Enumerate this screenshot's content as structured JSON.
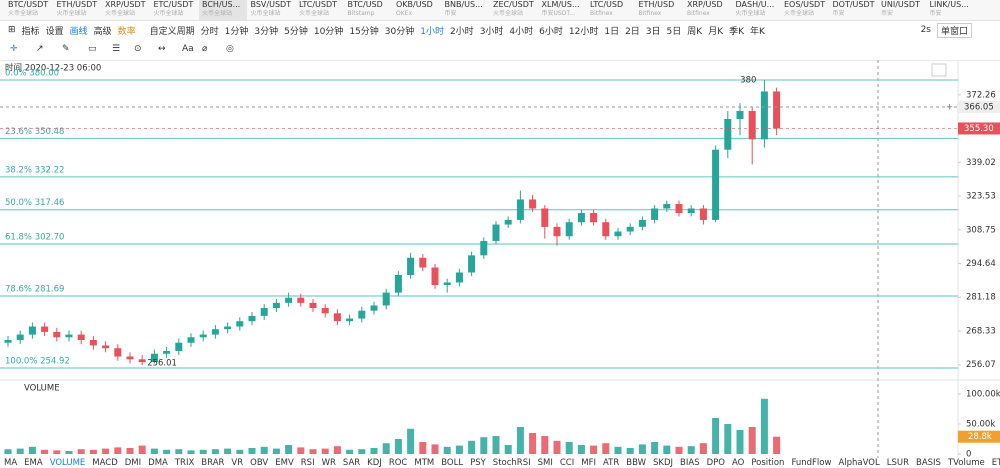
{
  "tabs": [
    {
      "symbol": "BTC/USDT",
      "exchange": "火币全球站"
    },
    {
      "symbol": "ETH/USDT",
      "exchange": "火币全球站"
    },
    {
      "symbol": "XRP/USDT",
      "exchange": "火币全球站"
    },
    {
      "symbol": "ETC/USDT",
      "exchange": "火币全球站"
    },
    {
      "symbol": "BCH/US...",
      "exchange": "火币全球站"
    },
    {
      "symbol": "BSV/USDT",
      "exchange": "火币全球站"
    },
    {
      "symbol": "LTC/USDT",
      "exchange": "火币全球站"
    },
    {
      "symbol": "BTC/USD",
      "exchange": "Bitstamp"
    },
    {
      "symbol": "OKB/USD",
      "exchange": "OKEx"
    },
    {
      "symbol": "BNB/US...",
      "exchange": "币安"
    },
    {
      "symbol": "ZEC/USDT",
      "exchange": "火币全球站"
    },
    {
      "symbol": "XLM/US...",
      "exchange": "币安USDT..."
    },
    {
      "symbol": "LTC/USD",
      "exchange": "Bitfinex"
    },
    {
      "symbol": "ETH/USD",
      "exchange": "Bitfinex"
    },
    {
      "symbol": "XRP/USD",
      "exchange": "Bitfinex"
    },
    {
      "symbol": "DASH/U...",
      "exchange": "火币全球站"
    },
    {
      "symbol": "EOS/USDT",
      "exchange": "火币全球站"
    },
    {
      "symbol": "DOT/USDT",
      "exchange": "币安"
    },
    {
      "symbol": "UNI/USDT",
      "exchange": "币安"
    },
    {
      "symbol": "LINK/US...",
      "exchange": "币安"
    }
  ],
  "active_tab": 4,
  "toolbar": {
    "indicator": "指标",
    "settings": "设置",
    "draw": "画线",
    "advanced": "高级",
    "rate": "数率",
    "custom_period": "自定义周期",
    "periods": [
      "分时",
      "1分钟",
      "3分钟",
      "5分钟",
      "10分钟",
      "15分钟",
      "30分钟",
      "1小时",
      "2小时",
      "3小时",
      "4小时",
      "6小时",
      "12小时",
      "1日",
      "2日",
      "3日",
      "5日",
      "周K",
      "月K",
      "季K",
      "年K"
    ],
    "active_period": 7,
    "refresh": "2s",
    "window": "单窗口"
  },
  "draw_tools": {
    "font": "Aa"
  },
  "chart_data": {
    "type": "candlestick",
    "time_label": "时间 2020-12-23 06:00",
    "log": true,
    "ylim": [
      251.4,
      389.6
    ],
    "yticks": [
      372.26,
      339.02,
      323.53,
      308.75,
      294.64,
      281.18,
      268.33,
      256.07
    ],
    "current_price": 366.05,
    "last_price": {
      "value": 355.3,
      "label": "355.30"
    },
    "high_label": 380,
    "low_label": 256.01,
    "fib_levels": [
      {
        "value": 380,
        "label": "0.0% 380.00"
      },
      {
        "value": 350.48,
        "label": "23.6% 350.48"
      },
      {
        "value": 332.22,
        "label": "38.2% 332.22"
      },
      {
        "value": 317.46,
        "label": "50.0% 317.46"
      },
      {
        "value": 302.7,
        "label": "61.8% 302.70"
      },
      {
        "value": 281.69,
        "label": "78.6% 281.69"
      },
      {
        "value": 254.92,
        "label": "100.0% 254.92"
      }
    ],
    "up_color": "#26a69a",
    "down_color": "#e8505b",
    "open": [
      264,
      265,
      267,
      270,
      268,
      266,
      267,
      265,
      263,
      262,
      259,
      258,
      257,
      260,
      261,
      264,
      266,
      267,
      269,
      270,
      272,
      274,
      277,
      279,
      281,
      279,
      277,
      275,
      272,
      273,
      276,
      278,
      283,
      290,
      297,
      293,
      286,
      287,
      291,
      298,
      304,
      311,
      313,
      322,
      318,
      310,
      306,
      312,
      316,
      312,
      306,
      308,
      310,
      313,
      318,
      320,
      316,
      318,
      313,
      345,
      360,
      364,
      350,
      374
    ],
    "high": [
      266.5,
      268.5,
      271.5,
      271.5,
      269.5,
      268.5,
      268.5,
      266.5,
      264.5,
      263.5,
      260.5,
      259.5,
      261.5,
      262.5,
      265.5,
      267.5,
      268.5,
      270.5,
      271.5,
      273.5,
      275.5,
      278.5,
      280.5,
      283,
      282.5,
      280.5,
      278.5,
      276.5,
      274.5,
      277.5,
      279.5,
      284.5,
      291.5,
      299,
      298.5,
      294.5,
      288.5,
      292.5,
      299.5,
      305.5,
      312.5,
      314.5,
      326,
      324,
      319.5,
      311.5,
      313.5,
      317.5,
      317.5,
      313.5,
      309.5,
      311.5,
      314.5,
      319.5,
      321.5,
      321.5,
      319.5,
      319.5,
      347,
      364,
      368,
      366,
      380,
      376
    ],
    "low": [
      262.5,
      263.5,
      265.5,
      266.5,
      264.5,
      264.5,
      263.5,
      261.5,
      260.5,
      257.5,
      256.5,
      256.01,
      256.5,
      258.5,
      259.5,
      262.5,
      264.5,
      265.5,
      267.5,
      268.5,
      270.5,
      272.5,
      275.5,
      277.5,
      277.5,
      275.5,
      273.5,
      270.5,
      270.5,
      271.5,
      274.5,
      276.5,
      281.5,
      288.5,
      291.5,
      284.5,
      283,
      285.5,
      289.5,
      296.5,
      302.5,
      309.5,
      311.5,
      316.5,
      305,
      302,
      304.5,
      310.5,
      310.5,
      304.5,
      304.5,
      306.5,
      308.5,
      311.5,
      316.5,
      314.5,
      314.5,
      311,
      312,
      341,
      352,
      338,
      346,
      352
    ],
    "close": [
      265,
      267,
      270,
      268,
      266,
      267,
      265,
      263,
      262,
      259,
      258,
      257,
      260,
      261,
      264,
      266,
      267,
      269,
      270,
      272,
      274,
      277,
      279,
      281,
      279,
      277,
      275,
      272,
      273,
      276,
      278,
      283,
      290,
      297,
      293,
      286,
      287,
      291,
      298,
      304,
      311,
      313,
      322,
      318,
      310,
      306,
      312,
      316,
      312,
      306,
      308,
      310,
      313,
      318,
      320,
      316,
      318,
      313,
      345,
      360,
      364,
      350,
      374,
      355.3
    ],
    "volume": [
      8000,
      9000,
      12000,
      7000,
      6000,
      5000,
      8000,
      7000,
      9000,
      11000,
      10000,
      14000,
      9000,
      7000,
      8000,
      6000,
      7000,
      8000,
      9000,
      7000,
      10000,
      12000,
      9000,
      15000,
      11000,
      8000,
      9000,
      13000,
      7000,
      8000,
      10000,
      18000,
      25000,
      42000,
      20000,
      16000,
      12000,
      14000,
      22000,
      28000,
      30000,
      15000,
      45000,
      35000,
      30000,
      22000,
      20000,
      15000,
      14000,
      18000,
      12000,
      10000,
      16000,
      20000,
      14000,
      12000,
      13000,
      18000,
      60000,
      50000,
      40000,
      45000,
      92000,
      28800
    ],
    "volume_panel": {
      "title": "VOLUME",
      "ylim": [
        0,
        105000
      ],
      "yticks": [
        {
          "value": 100000,
          "label": "100.00k"
        },
        {
          "value": 50000,
          "label": "50.00k"
        },
        0
      ],
      "last": {
        "value": 28800,
        "label": "28.8k"
      }
    }
  },
  "indicators": [
    "MA",
    "EMA",
    "VOLUME",
    "MACD",
    "DMI",
    "DMA",
    "TRIX",
    "BRAR",
    "VR",
    "OBV",
    "EMV",
    "RSI",
    "WR",
    "SAR",
    "KDJ",
    "ROC",
    "MTM",
    "BOLL",
    "PSY",
    "StochRSI",
    "SMI",
    "CCI",
    "MFI",
    "ATR",
    "BBW",
    "SKDJ",
    "BIAS",
    "DPO",
    "AO",
    "Position",
    "FundFlow",
    "AlphaVOL",
    "LSUR",
    "BASIS",
    "TVolume",
    "ETBS",
    "TTSI"
  ],
  "active_indicator": 2
}
